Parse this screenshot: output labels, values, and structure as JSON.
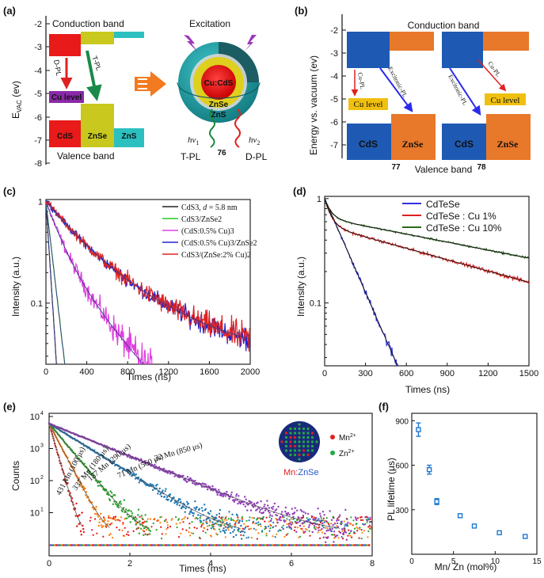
{
  "panels": {
    "a": {
      "label": "(a)",
      "y_axis_label": "E",
      "y_axis_sub": "VAC",
      "y_axis_unit": " (ev)",
      "y_ticks": [
        "-2",
        "-3",
        "-4",
        "-5",
        "-6",
        "-7",
        "-8"
      ],
      "conduction_band": "Conduction band",
      "valence_band": "Valence band",
      "dpl": "D-PL",
      "tpl": "T-PL",
      "cu_level": "Cu level",
      "materials": [
        "CdS",
        "ZnSe",
        "ZnS"
      ],
      "excitation": "Excitation",
      "core": "Cu:CdS",
      "shell1": "ZnSe",
      "shell2": "ZnS",
      "hv1": "hν",
      "hv1_sub": "1",
      "hv2": "hν",
      "hv2_sub": "2",
      "tpl_bottom": "T-PL",
      "dpl_bottom": "D-PL",
      "ref": "76"
    },
    "b": {
      "label": "(b)",
      "y_axis_label": "Energy vs. vacuum (ev)",
      "y_ticks": [
        "-2",
        "-3",
        "-4",
        "-5",
        "-6",
        "-7"
      ],
      "conduction_band": "Conduction band",
      "valence_band": "Valence band",
      "cu_pl": "Cu-PL",
      "excitonic_pl": "Excitonic-PL",
      "cu_level": "Cu level",
      "materials": [
        "CdS",
        "ZnSe"
      ],
      "ref_left": "77",
      "ref_right": "78"
    },
    "c": {
      "label": "(c)",
      "y_axis_label": "Intensity (a.u.)",
      "x_axis_label": "Times (ns)",
      "y_tick_labels": [
        "1",
        "0.1"
      ],
      "x_tick_labels": [
        "0",
        "400",
        "800",
        "1200",
        "1600",
        "2000"
      ],
      "legend": [
        {
          "pre": "CdS3, ",
          "ital": "d",
          "post": " = 5.8 nm",
          "color": "#222222"
        },
        {
          "pre": "CdS3/ZnSe2",
          "ital": "",
          "post": "",
          "color": "#22cc22"
        },
        {
          "pre": "(CdS:0.5% Cu)3",
          "ital": "",
          "post": "",
          "color": "#e040e0"
        },
        {
          "pre": "(CdS:0.5% Cu)3/ZnSe2",
          "ital": "",
          "post": "",
          "color": "#2222cc"
        },
        {
          "pre": "CdS3/(ZnSe:2% Cu)2",
          "ital": "",
          "post": "",
          "color": "#dd2222"
        }
      ]
    },
    "d": {
      "label": "(d)",
      "y_axis_label": "Intensity (a.u.)",
      "x_axis_label": "Times (ns)",
      "y_tick_labels": [
        "1",
        "0.1"
      ],
      "x_tick_labels": [
        "0",
        "300",
        "600",
        "900",
        "1200",
        "1500"
      ],
      "legend": [
        {
          "text": "CdTeSe",
          "color": "#3030dd"
        },
        {
          "text": "CdTeSe : Cu 1%",
          "color": "#dd2020"
        },
        {
          "text": "CdTeSe : Cu 10%",
          "color": "#2a6a1a"
        }
      ]
    },
    "e": {
      "label": "(e)",
      "y_axis_label": "Counts",
      "x_axis_label": "Times (ms)",
      "y_tick_labels": [
        "10",
        "10",
        "10",
        "10"
      ],
      "y_tick_exps": [
        "4",
        "3",
        "2",
        "1"
      ],
      "x_tick_labels": [
        "0",
        "2",
        "4",
        "6",
        "8"
      ],
      "curve_labels": [
        "32 Mn (850 μs)",
        "71 Mn (560 μs)",
        "187 Mn (290 μs)",
        "337 Mn (180 μs)",
        "431 Mn (100 μs)"
      ],
      "legend_mn": "Mn",
      "legend_mn_sup": "2+",
      "legend_zn": "Zn",
      "legend_zn_sup": "2+",
      "caption_mn": "Mn:",
      "caption_znse": "ZnSe"
    },
    "f": {
      "label": "(f)",
      "y_axis_label": "PL lifetime (μs)",
      "x_axis_label": "Mn/ Zn (mol%)",
      "y_tick_labels": [
        "300",
        "600",
        "900"
      ],
      "x_tick_labels": [
        "0",
        "5",
        "10",
        "15"
      ]
    }
  },
  "chart_data": [
    {
      "panel": "c",
      "type": "line",
      "title": "",
      "xlabel": "Times (ns)",
      "ylabel": "Intensity (a.u.)",
      "xlim": [
        0,
        2000
      ],
      "ylim": [
        0.025,
        1.05
      ],
      "yscale": "log",
      "series": [
        {
          "name": "CdS3, d = 5.8 nm",
          "tau": [
            {
              "a": 1,
              "t": 28
            }
          ],
          "color": "#222222",
          "noise": 0.05
        },
        {
          "name": "CdS3/ZnSe2",
          "tau": [
            {
              "a": 1,
              "t": 50
            }
          ],
          "color": "#22cc22",
          "noise": 0.05
        },
        {
          "name": "(CdS:0.5% Cu)3",
          "tau": [
            {
              "a": 0.7,
              "t": 130
            },
            {
              "a": 0.3,
              "t": 380
            }
          ],
          "color": "#e040e0",
          "noise": 0.25
        },
        {
          "name": "(CdS:0.5% Cu)3/ZnSe2",
          "tau": [
            {
              "a": 0.55,
              "t": 250
            },
            {
              "a": 0.45,
              "t": 600
            }
          ],
          "floor": 0.028,
          "color": "#2222cc",
          "noise": 0.2
        },
        {
          "name": "CdS3/(ZnSe:2% Cu)2",
          "tau": [
            {
              "a": 0.55,
              "t": 250
            },
            {
              "a": 0.45,
              "t": 600
            }
          ],
          "floor": 0.028,
          "color": "#dd2222",
          "noise": 0.25
        }
      ]
    },
    {
      "panel": "d",
      "type": "line",
      "title": "",
      "xlabel": "Times (ns)",
      "ylabel": "Intensity (a.u.)",
      "xlim": [
        0,
        1500
      ],
      "ylim": [
        0.025,
        1.05
      ],
      "yscale": "log",
      "series": [
        {
          "name": "CdTeSe",
          "tau": [
            {
              "a": 1,
              "t": 145
            }
          ],
          "color": "#3030dd",
          "noise": 0.08
        },
        {
          "name": "CdTeSe : Cu 1%",
          "tau": [
            {
              "a": 0.45,
              "t": 45
            },
            {
              "a": 0.55,
              "t": 1200
            }
          ],
          "color": "#dd2020",
          "noise": 0.06
        },
        {
          "name": "CdTeSe : Cu 10%",
          "tau": [
            {
              "a": 0.35,
              "t": 45
            },
            {
              "a": 0.65,
              "t": 1700
            }
          ],
          "color": "#2a6a1a",
          "noise": 0.04
        }
      ]
    },
    {
      "panel": "e",
      "type": "scatter",
      "title": "",
      "xlabel": "Times (ms)",
      "ylabel": "Counts",
      "xlim": [
        0,
        8
      ],
      "ylim": [
        1,
        10000
      ],
      "yscale": "log",
      "series": [
        {
          "name": "32 Mn (850 μs)",
          "tau_ms": 0.85,
          "color": "#8e3cb8",
          "end": 8
        },
        {
          "name": "71 Mn (560 μs)",
          "tau_ms": 0.56,
          "color": "#1f77b4",
          "end": 8
        },
        {
          "name": "187 Mn (290 μs)",
          "tau_ms": 0.29,
          "color": "#2ca02c",
          "end": 8
        },
        {
          "name": "337 Mn (180 μs)",
          "tau_ms": 0.18,
          "color": "#ff7f0e",
          "end": 8
        },
        {
          "name": "431 Mn (100 μs)",
          "tau_ms": 0.1,
          "color": "#dd1111",
          "end": 8
        }
      ]
    },
    {
      "panel": "f",
      "type": "scatter",
      "title": "",
      "xlabel": "Mn/ Zn (mol%)",
      "ylabel": "PL lifetime (μs)",
      "xlim": [
        0,
        15
      ],
      "ylim": [
        0,
        950
      ],
      "x": [
        0.8,
        2.1,
        3.0,
        5.8,
        7.5,
        10.5,
        13.6
      ],
      "y": [
        840,
        570,
        355,
        260,
        190,
        145,
        120
      ],
      "err": [
        45,
        30,
        20,
        12,
        10,
        6,
        5
      ],
      "color": "#1e78d2"
    }
  ]
}
